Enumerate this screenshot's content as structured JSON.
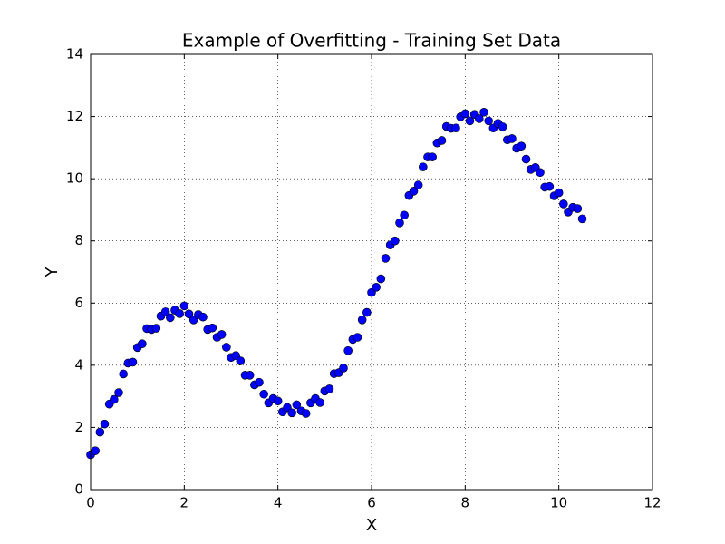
{
  "chart_data": {
    "type": "scatter",
    "title": "Example of Overfitting - Training Set Data",
    "x_label": "X",
    "y_label": "Y",
    "xlim": [
      0,
      12
    ],
    "ylim": [
      0,
      14
    ],
    "xticks": [
      0,
      2,
      4,
      6,
      8,
      10,
      12
    ],
    "yticks": [
      0,
      2,
      4,
      6,
      8,
      10,
      12,
      14
    ],
    "grid": true,
    "series": [
      {
        "color": "#0000ff",
        "x": [
          0,
          0.1,
          0.2,
          0.3,
          0.4,
          0.5,
          0.6,
          0.7,
          0.8,
          0.9,
          1,
          1.1,
          1.2,
          1.3,
          1.4,
          1.5,
          1.6,
          1.7,
          1.8,
          1.9,
          2,
          2.1,
          2.2,
          2.3,
          2.4,
          2.5,
          2.6,
          2.7,
          2.8,
          2.9,
          3,
          3.1,
          3.2,
          3.3,
          3.4,
          3.5,
          3.6,
          3.7,
          3.8,
          3.9,
          4,
          4.1,
          4.2,
          4.3,
          4.4,
          4.5,
          4.6,
          4.7,
          4.8,
          4.9,
          5,
          5.1,
          5.2,
          5.3,
          5.4,
          5.5,
          5.6,
          5.7,
          5.8,
          5.9,
          6,
          6.1,
          6.2,
          6.3,
          6.4,
          6.5,
          6.6,
          6.7,
          6.8,
          6.9,
          7,
          7.1,
          7.2,
          7.3,
          7.4,
          7.5,
          7.6,
          7.7,
          7.8,
          7.9,
          8,
          8.1,
          8.2,
          8.3,
          8.4,
          8.5,
          8.6,
          8.7,
          8.8,
          8.9,
          9,
          9.1,
          9.2,
          9.3,
          9.4,
          9.5,
          9.6,
          9.7,
          9.8,
          9.9,
          10,
          10.1,
          10.2,
          10.3,
          10.4,
          10.5
        ],
        "values": [
          1.12,
          1.25,
          1.85,
          2.11,
          2.75,
          2.9,
          3.12,
          3.72,
          4.07,
          4.1,
          4.57,
          4.69,
          5.18,
          5.15,
          5.19,
          5.58,
          5.72,
          5.53,
          5.77,
          5.66,
          5.91,
          5.65,
          5.46,
          5.63,
          5.55,
          5.15,
          5.2,
          4.9,
          4.99,
          4.58,
          4.25,
          4.31,
          4.14,
          3.68,
          3.68,
          3.37,
          3.45,
          3.07,
          2.79,
          2.93,
          2.85,
          2.5,
          2.64,
          2.47,
          2.73,
          2.53,
          2.45,
          2.79,
          2.93,
          2.8,
          3.17,
          3.24,
          3.73,
          3.76,
          3.91,
          4.47,
          4.83,
          4.9,
          5.46,
          5.7,
          6.34,
          6.51,
          6.78,
          7.44,
          7.87,
          8.0,
          8.58,
          8.83,
          9.46,
          9.6,
          9.8,
          10.38,
          10.7,
          10.7,
          11.15,
          11.23,
          11.68,
          11.62,
          11.63,
          11.99,
          12.09,
          11.86,
          12.07,
          11.93,
          12.14,
          11.86,
          11.63,
          11.78,
          11.67,
          11.25,
          11.29,
          10.98,
          11.05,
          10.63,
          10.3,
          10.36,
          10.2,
          9.73,
          9.75,
          9.45,
          9.55,
          9.19,
          8.93,
          9.08,
          9.04,
          8.71
        ]
      }
    ]
  }
}
